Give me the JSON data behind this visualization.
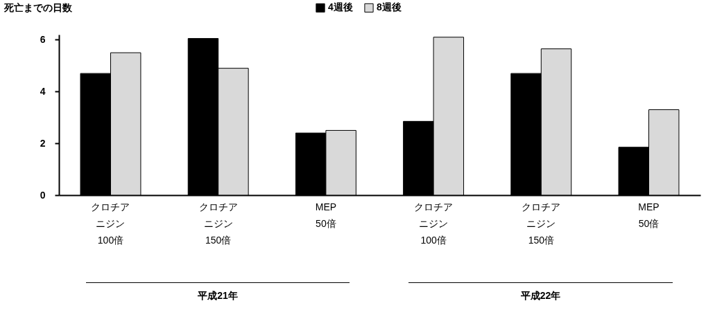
{
  "chart_data": {
    "type": "bar",
    "ylabel": "死亡までの日数",
    "categories": [
      "クロチアニジン 100倍",
      "クロチアニジン 150倍",
      "MEP 50倍",
      "クロチアニジン 100倍",
      "クロチアニジン 150倍",
      "MEP 50倍"
    ],
    "series": [
      {
        "name": "4週後",
        "color": "#000000",
        "values": [
          4.7,
          6.05,
          2.4,
          2.85,
          4.7,
          1.85
        ]
      },
      {
        "name": "8週後",
        "color": "#d9d9d9",
        "values": [
          5.5,
          4.9,
          2.5,
          6.1,
          5.65,
          3.3
        ]
      }
    ],
    "annotations": [
      "平成21年",
      "平成22年"
    ],
    "ylim": [
      0,
      6.2
    ],
    "yticks": [
      0,
      2,
      4,
      6
    ],
    "grid": false,
    "legend": "top"
  }
}
